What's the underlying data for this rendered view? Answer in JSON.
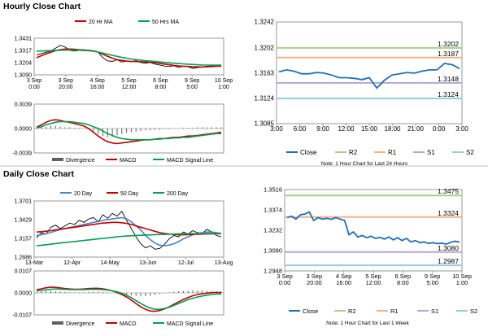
{
  "sections": {
    "hourly_title": "Hourly Close Chart",
    "daily_title": "Daily Close Chart"
  },
  "colors": {
    "price": "#000000",
    "ma_short": "#c00000",
    "ma_long": "#00a050",
    "ma_20day": "#4a86c5",
    "macd": "#c00000",
    "signal": "#00a050",
    "divergence": "#606060",
    "close": "#1f6fb5",
    "r2": "#a8d08d",
    "r1": "#f4b183",
    "s1": "#b4a7d6",
    "s2": "#92cddc",
    "frame": "#7f7f7f"
  },
  "chart_data": [
    {
      "id": "hourly-price",
      "type": "line",
      "ylim": [
        1.309,
        1.3431
      ],
      "yticks": [
        "1.3431",
        "1.3317",
        "1.3204",
        "1.3090"
      ],
      "xticks": [
        "3 Sep\n0:00",
        "3 Sep\n20:00",
        "4 Sep\n16:00",
        "5 Sep\n12:00",
        "6 Sep\n8:00",
        "9 Sep\n5:00",
        "10 Sep\n1:00"
      ],
      "legend": [
        "20 Hr MA",
        "50 Hrs MA"
      ],
      "series": [
        {
          "name": "",
          "role": "price",
          "values": [
            1.3275,
            1.3288,
            1.33,
            1.3312,
            1.3338,
            1.3365,
            1.335,
            1.3318,
            1.3312,
            1.3318,
            1.3314,
            1.332,
            1.3315,
            1.33,
            1.325,
            1.322,
            1.3215,
            1.323,
            1.321,
            1.3218,
            1.3212,
            1.3222,
            1.3205,
            1.3198,
            1.3205,
            1.319,
            1.3182,
            1.3172,
            1.3168,
            1.3175,
            1.316,
            1.317,
            1.3165,
            1.315,
            1.3158,
            1.3162,
            1.317,
            1.3174,
            1.3178,
            1.3168
          ]
        },
        {
          "name": "20 Hr MA",
          "role": "ma_short",
          "values": [
            1.325,
            1.3268,
            1.3285,
            1.33,
            1.3315,
            1.3325,
            1.333,
            1.333,
            1.3328,
            1.3325,
            1.3322,
            1.3318,
            1.3312,
            1.3302,
            1.3282,
            1.3262,
            1.3245,
            1.3232,
            1.3225,
            1.3218,
            1.3215,
            1.3214,
            1.3212,
            1.321,
            1.3207,
            1.3203,
            1.3197,
            1.319,
            1.3184,
            1.3178,
            1.3173,
            1.317,
            1.3168,
            1.3166,
            1.3164,
            1.3163,
            1.3165,
            1.3167,
            1.317,
            1.3171
          ]
        },
        {
          "name": "50 Hrs MA",
          "role": "ma_long",
          "values": [
            1.331,
            1.3312,
            1.3314,
            1.3316,
            1.3318,
            1.3319,
            1.332,
            1.3321,
            1.3321,
            1.332,
            1.3318,
            1.3315,
            1.331,
            1.3302,
            1.3292,
            1.3282,
            1.3272,
            1.3262,
            1.3253,
            1.3245,
            1.3238,
            1.3232,
            1.3227,
            1.3222,
            1.3218,
            1.3214,
            1.321,
            1.3206,
            1.3202,
            1.3198,
            1.3195,
            1.3192,
            1.3189,
            1.3186,
            1.3184,
            1.3182,
            1.3181,
            1.318,
            1.318,
            1.318
          ]
        }
      ]
    },
    {
      "id": "hourly-macd",
      "type": "line",
      "ylim": [
        -0.0039,
        0.0039
      ],
      "yticks": [
        "0.0039",
        "0.0000",
        "-0.0039"
      ],
      "legend": [
        "Divergence",
        "MACD",
        "MACD Signal Line"
      ],
      "series": [
        {
          "name": "Divergence",
          "role": "divergence",
          "values": [
            0.0001,
            0.0002,
            0.0003,
            0.0004,
            0.0004,
            0.0003,
            0.0002,
            0.0002,
            0.0001,
            0.0001,
            0.0,
            -0.0002,
            -0.0005,
            -0.0009,
            -0.0012,
            -0.0014,
            -0.0013,
            -0.0011,
            -0.0009,
            -0.0007,
            -0.0006,
            -0.0005,
            -0.0004,
            -0.0003,
            -0.0003,
            -0.0002,
            -0.0002,
            -0.0001,
            -0.0001,
            0.0,
            0.0,
            0.0001,
            0.0001,
            0.0001,
            0.0002,
            0.0002,
            0.0002,
            0.0002,
            0.0002,
            0.0002
          ]
        },
        {
          "name": "MACD",
          "role": "macd",
          "values": [
            0.0002,
            0.0006,
            0.001,
            0.0013,
            0.0014,
            0.0013,
            0.0011,
            0.001,
            0.0008,
            0.0006,
            0.0004,
            0.0,
            -0.0006,
            -0.0012,
            -0.0017,
            -0.0021,
            -0.0023,
            -0.0024,
            -0.0023,
            -0.0022,
            -0.0021,
            -0.002,
            -0.0019,
            -0.0018,
            -0.0018,
            -0.0017,
            -0.0016,
            -0.0016,
            -0.0015,
            -0.0014,
            -0.0014,
            -0.0013,
            -0.0012,
            -0.0012,
            -0.0011,
            -0.001,
            -0.0009,
            -0.0008,
            -0.0007,
            -0.0006
          ]
        },
        {
          "name": "MACD Signal Line",
          "role": "signal",
          "values": [
            0.0001,
            0.0003,
            0.0006,
            0.0008,
            0.001,
            0.0011,
            0.0011,
            0.0011,
            0.001,
            0.0009,
            0.0008,
            0.0006,
            0.0003,
            0.0,
            -0.0004,
            -0.0008,
            -0.0011,
            -0.0014,
            -0.0016,
            -0.0017,
            -0.0018,
            -0.0018,
            -0.0018,
            -0.0018,
            -0.0018,
            -0.0017,
            -0.0017,
            -0.0016,
            -0.0016,
            -0.0015,
            -0.0015,
            -0.0014,
            -0.0014,
            -0.0013,
            -0.0012,
            -0.0011,
            -0.001,
            -0.0009,
            -0.0008,
            -0.0008
          ]
        }
      ]
    },
    {
      "id": "hourly-levels",
      "type": "line",
      "ylim": [
        1.3085,
        1.3242
      ],
      "yticks": [
        "1.3242",
        "1.3202",
        "1.3163",
        "1.3124",
        "1.3085"
      ],
      "xticks": [
        "3:00",
        "6:00",
        "9:00",
        "12:00",
        "15:00",
        "18:00",
        "21:00",
        "0:00",
        "3:00"
      ],
      "levels": [
        {
          "name": "R2",
          "value": 1.3202,
          "label": "1.3202"
        },
        {
          "name": "R1",
          "value": 1.3187,
          "label": "1.3187"
        },
        {
          "name": "S1",
          "value": 1.3148,
          "label": "1.3148"
        },
        {
          "name": "S2",
          "value": 1.3124,
          "label": "1.3124"
        }
      ],
      "legend": [
        "Close",
        "R2",
        "R1",
        "S1",
        "S2"
      ],
      "note": "Note: 1 Hour Chart for Last 24 Hours",
      "series": [
        {
          "name": "Close",
          "role": "close",
          "values": [
            1.3165,
            1.3168,
            1.3166,
            1.3162,
            1.3162,
            1.3164,
            1.3163,
            1.316,
            1.3156,
            1.3156,
            1.3155,
            1.3153,
            1.3156,
            1.314,
            1.3152,
            1.316,
            1.3162,
            1.3164,
            1.3163,
            1.3166,
            1.3168,
            1.3168,
            1.3178,
            1.3176,
            1.317
          ]
        }
      ]
    },
    {
      "id": "daily-price",
      "type": "line",
      "ylim": [
        1.2886,
        1.3701
      ],
      "yticks": [
        "1.3701",
        "1.3429",
        "1.3157",
        "1.2886"
      ],
      "xticks": [
        "13-Mar",
        "12-Apr",
        "14-May",
        "13-Jun",
        "12-Jul",
        "13-Aug"
      ],
      "legend": [
        "20 Day",
        "50 Day",
        "200 Day"
      ],
      "series": [
        {
          "name": "",
          "role": "price",
          "values": [
            1.317,
            1.324,
            1.322,
            1.332,
            1.335,
            1.33,
            1.334,
            1.338,
            1.336,
            1.342,
            1.339,
            1.344,
            1.346,
            1.34,
            1.35,
            1.345,
            1.352,
            1.348,
            1.355,
            1.342,
            1.33,
            1.318,
            1.308,
            1.302,
            1.305,
            1.3,
            1.301,
            1.307,
            1.315,
            1.32,
            1.318,
            1.325,
            1.322,
            1.327,
            1.324,
            1.323,
            1.329,
            1.325,
            1.32,
            1.318
          ]
        },
        {
          "name": "20 Day",
          "role": "ma_20day",
          "values": [
            1.32,
            1.321,
            1.3225,
            1.3245,
            1.3265,
            1.3285,
            1.33,
            1.3315,
            1.333,
            1.3345,
            1.336,
            1.3375,
            1.339,
            1.34,
            1.342,
            1.343,
            1.344,
            1.345,
            1.346,
            1.344,
            1.34,
            1.334,
            1.328,
            1.32,
            1.314,
            1.309,
            1.306,
            1.305,
            1.306,
            1.308,
            1.311,
            1.315,
            1.318,
            1.321,
            1.323,
            1.324,
            1.325,
            1.325,
            1.324,
            1.323
          ]
        },
        {
          "name": "50 Day",
          "role": "ma_short",
          "values": [
            1.325,
            1.3255,
            1.3262,
            1.327,
            1.328,
            1.329,
            1.33,
            1.331,
            1.332,
            1.333,
            1.334,
            1.335,
            1.336,
            1.337,
            1.338,
            1.3385,
            1.339,
            1.339,
            1.3385,
            1.3375,
            1.336,
            1.334,
            1.332,
            1.33,
            1.328,
            1.326,
            1.324,
            1.323,
            1.322,
            1.3215,
            1.321,
            1.321,
            1.3212,
            1.3215,
            1.3218,
            1.322,
            1.3222,
            1.3224,
            1.3225,
            1.3226
          ]
        },
        {
          "name": "200 Day",
          "role": "ma_long",
          "values": [
            1.305,
            1.3058,
            1.3066,
            1.3074,
            1.3082,
            1.309,
            1.3098,
            1.3105,
            1.3112,
            1.312,
            1.3128,
            1.3135,
            1.3142,
            1.315,
            1.3157,
            1.3165,
            1.3172,
            1.318,
            1.3187,
            1.3192,
            1.3196,
            1.32,
            1.3203,
            1.3206,
            1.3209,
            1.3212,
            1.3214,
            1.3216,
            1.3218,
            1.322,
            1.3222,
            1.3224,
            1.3225,
            1.3226,
            1.3227,
            1.3228,
            1.3229,
            1.323,
            1.323,
            1.3231
          ]
        }
      ]
    },
    {
      "id": "daily-macd",
      "type": "line",
      "ylim": [
        -0.0107,
        0.0107
      ],
      "yticks": [
        "0.0107",
        "0.0000",
        "-0.0107"
      ],
      "legend": [
        "Divergence",
        "MACD",
        "MACD Signal Line"
      ],
      "series": [
        {
          "name": "Divergence",
          "role": "divergence",
          "values": [
            0.0005,
            0.0008,
            0.001,
            0.001,
            0.0008,
            0.0006,
            0.0004,
            0.0003,
            0.0002,
            0.0002,
            0.0003,
            0.0004,
            0.0005,
            0.0005,
            0.0004,
            0.0002,
            0.0,
            -0.0003,
            -0.0006,
            -0.0009,
            -0.0012,
            -0.0014,
            -0.0016,
            -0.0016,
            -0.0014,
            -0.001,
            -0.0006,
            -0.0002,
            0.0002,
            0.0005,
            0.0008,
            0.001,
            0.0011,
            0.0012,
            0.0012,
            0.0011,
            0.001,
            0.0009,
            0.0008,
            0.0007
          ]
        },
        {
          "name": "MACD",
          "role": "macd",
          "values": [
            0.0015,
            0.002,
            0.0025,
            0.0028,
            0.0027,
            0.0024,
            0.0021,
            0.0019,
            0.0018,
            0.0018,
            0.0019,
            0.0021,
            0.0022,
            0.0022,
            0.002,
            0.0016,
            0.001,
            0.0002,
            -0.0008,
            -0.002,
            -0.0035,
            -0.0052,
            -0.0068,
            -0.008,
            -0.0088,
            -0.009,
            -0.0086,
            -0.0078,
            -0.0068,
            -0.0056,
            -0.0044,
            -0.0032,
            -0.0022,
            -0.0014,
            -0.0008,
            -0.0004,
            -0.0001,
            0.0001,
            0.0002,
            0.0002
          ]
        },
        {
          "name": "MACD Signal Line",
          "role": "signal",
          "values": [
            0.001,
            0.0012,
            0.0015,
            0.0018,
            0.0019,
            0.0018,
            0.0017,
            0.0016,
            0.0016,
            0.0016,
            0.0016,
            0.0017,
            0.0017,
            0.0017,
            0.0016,
            0.0014,
            0.001,
            0.0005,
            -0.0002,
            -0.0011,
            -0.0023,
            -0.0038,
            -0.0052,
            -0.0064,
            -0.0074,
            -0.008,
            -0.008,
            -0.0076,
            -0.007,
            -0.0061,
            -0.0052,
            -0.0042,
            -0.0033,
            -0.0026,
            -0.002,
            -0.0015,
            -0.0011,
            -0.0008,
            -0.0006,
            -0.0005
          ]
        }
      ]
    },
    {
      "id": "daily-levels",
      "type": "line",
      "ylim": [
        1.2948,
        1.3516
      ],
      "yticks": [
        "1.3516",
        "1.3374",
        "1.3232",
        "1.3090",
        "1.2948"
      ],
      "xticks": [
        "3 Sep\n0:00",
        "3 Sep\n20:00",
        "4 Sep\n16:00",
        "5 Sep\n12:00",
        "6 Sep\n8:00",
        "9 Sep\n5:00",
        "10 Sep\n1:00"
      ],
      "levels": [
        {
          "name": "R2",
          "value": 1.3475,
          "label": "1.3475"
        },
        {
          "name": "R1",
          "value": 1.3324,
          "label": "1.3324"
        },
        {
          "name": "S1",
          "value": 1.308,
          "label": "1.3080"
        },
        {
          "name": "S2",
          "value": 1.2987,
          "label": "1.2987"
        }
      ],
      "legend": [
        "Close",
        "R2",
        "R1",
        "S1",
        "S2"
      ],
      "note": "Note: 1 Hour Chart for Last 1 Week",
      "series": [
        {
          "name": "Close",
          "role": "close",
          "values": [
            1.332,
            1.333,
            1.331,
            1.334,
            1.3345,
            1.336,
            1.33,
            1.332,
            1.331,
            1.3315,
            1.3308,
            1.332,
            1.331,
            1.33,
            1.32,
            1.322,
            1.3185,
            1.3195,
            1.318,
            1.319,
            1.3175,
            1.3182,
            1.317,
            1.3185,
            1.3165,
            1.318,
            1.316,
            1.3175,
            1.315,
            1.316,
            1.3145,
            1.315,
            1.314,
            1.3145,
            1.3138,
            1.3142,
            1.3135,
            1.3148,
            1.3155,
            1.315
          ]
        }
      ]
    }
  ]
}
